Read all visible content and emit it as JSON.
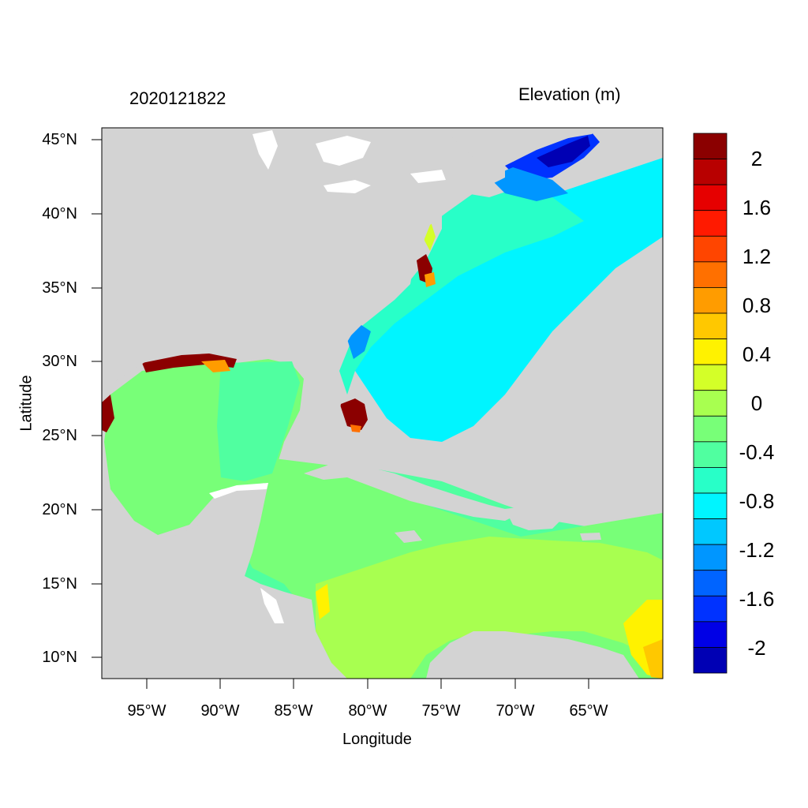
{
  "header": {
    "timestamp": "2020121822",
    "variable": "Elevation (m)"
  },
  "axes": {
    "xlabel": "Longitude",
    "ylabel": "Latitude",
    "xticks": [
      "95°W",
      "90°W",
      "85°W",
      "80°W",
      "75°W",
      "70°W",
      "65°W"
    ],
    "yticks": [
      "45°N",
      "40°N",
      "35°N",
      "30°N",
      "25°N",
      "20°N",
      "15°N",
      "10°N"
    ]
  },
  "colorbar": {
    "labels": [
      "2",
      "1.6",
      "1.2",
      "0.8",
      "0.4",
      "0",
      "-0.4",
      "-0.8",
      "-1.2",
      "-1.6",
      "-2"
    ],
    "colors": [
      "#8b0000",
      "#b80000",
      "#e60000",
      "#ff1a00",
      "#ff4500",
      "#ff7000",
      "#ff9c00",
      "#ffc800",
      "#fff200",
      "#d4ff28",
      "#a8ff50",
      "#78ff78",
      "#50ffa0",
      "#28ffc8",
      "#00f5ff",
      "#00c8ff",
      "#0096ff",
      "#0064ff",
      "#0032ff",
      "#0000e6",
      "#0000b4"
    ]
  },
  "map": {
    "land_color": "#d3d3d3",
    "water_color": "#ffffff"
  }
}
